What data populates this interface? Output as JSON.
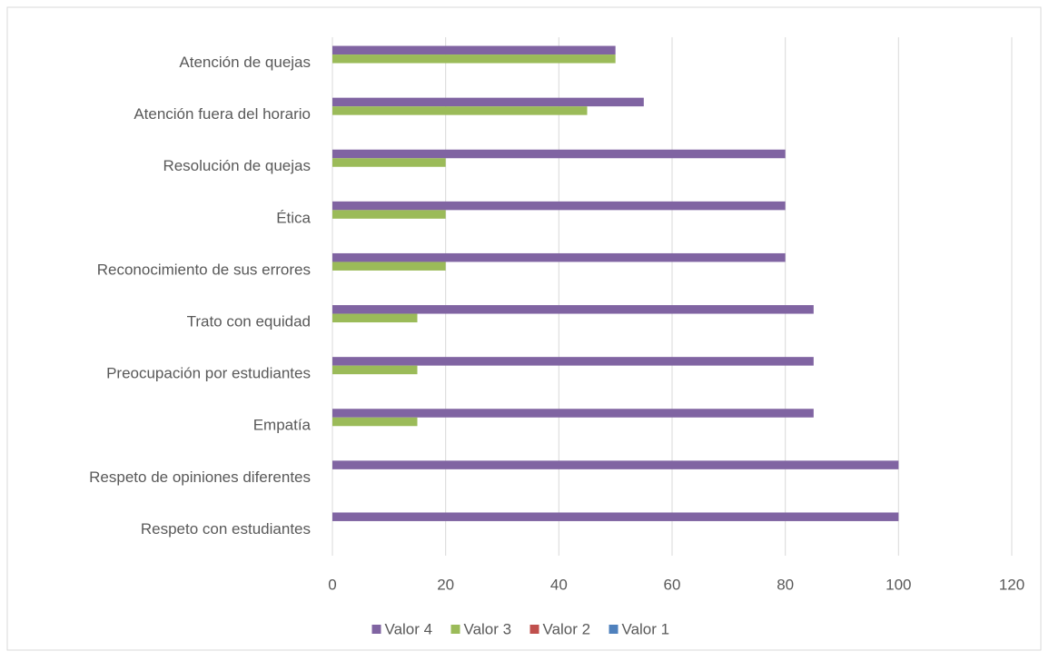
{
  "chart_data": {
    "type": "bar",
    "orientation": "horizontal",
    "categories": [
      "Atención de quejas",
      "Atención fuera del horario",
      "Resolución de quejas",
      "Ética",
      "Reconocimiento de sus errores",
      "Trato con equidad",
      "Preocupación por estudiantes",
      "Empatía",
      "Respeto de opiniones diferentes",
      "Respeto con estudiantes"
    ],
    "series": [
      {
        "name": "Valor 4",
        "color": "#8064a2",
        "values": [
          50,
          55,
          80,
          80,
          80,
          85,
          85,
          85,
          100,
          100
        ]
      },
      {
        "name": "Valor 3",
        "color": "#9bbb59",
        "values": [
          50,
          45,
          20,
          20,
          20,
          15,
          15,
          15,
          0,
          0
        ]
      },
      {
        "name": "Valor 2",
        "color": "#c0504d",
        "values": [
          0,
          0,
          0,
          0,
          0,
          0,
          0,
          0,
          0,
          0
        ]
      },
      {
        "name": "Valor 1",
        "color": "#4f81bd",
        "values": [
          0,
          0,
          0,
          0,
          0,
          0,
          0,
          0,
          0,
          0
        ]
      }
    ],
    "xlim": [
      0,
      120
    ],
    "xticks": [
      0,
      20,
      40,
      60,
      80,
      100,
      120
    ],
    "grid": true,
    "legend": "bottom"
  }
}
